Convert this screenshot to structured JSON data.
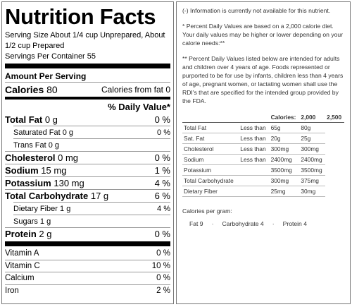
{
  "label": {
    "title": "Nutrition Facts",
    "serving_size": "Serving Size About 1/4 cup Unprepared, About 1/2 cup Prepared",
    "servings": "Servings Per Container 55",
    "amount_per_serving": "Amount Per Serving",
    "calories": {
      "name": "Calories",
      "amount": "80",
      "from_fat": "Calories from fat 0"
    },
    "dv_header": "% Daily Value*",
    "nutrients": [
      {
        "name": "Total Fat",
        "amount": "0 g",
        "dv": "0 %",
        "bold": true
      },
      {
        "name": "Saturated Fat 0 g",
        "dv": "0 %",
        "indent": true
      },
      {
        "name": "Trans Fat 0 g",
        "indent": true
      },
      {
        "name": "Cholesterol",
        "amount": "0 mg",
        "dv": "0 %",
        "bold": true
      },
      {
        "name": "Sodium",
        "amount": "15 mg",
        "dv": "1 %",
        "bold": true
      },
      {
        "name": "Potassium",
        "amount": "130 mg",
        "dv": "4 %",
        "bold": true
      },
      {
        "name": "Total Carbohydrate",
        "amount": "17 g",
        "dv": "6 %",
        "bold": true
      },
      {
        "name": "Dietary Fiber 1 g",
        "dv": "4 %",
        "indent": true
      },
      {
        "name": "Sugars 1 g",
        "indent": true
      },
      {
        "name": "Protein",
        "amount": "2 g",
        "dv": "0 %",
        "bold": true
      }
    ],
    "vitamins": [
      {
        "name": "Vitamin A",
        "dv": "0 %"
      },
      {
        "name": "Vitamin C",
        "dv": "10 %"
      },
      {
        "name": "Calcium",
        "dv": "0 %"
      },
      {
        "name": "Iron",
        "dv": "2 %"
      }
    ]
  },
  "notes": {
    "unavailable": "(-) Information is currently not available for this nutrient.",
    "percent_dv": "* Percent Daily Values are based on a 2,000 calorie diet. Your daily values may be higher or lower depending on your calorie needs:**",
    "intended": "** Percent Daily Values listed below are intended for adults and children over 4 years of age. Foods represented or purported to be for use by infants, children less than 4 years of age, pregnant women, or lactating women shall use the RDI's that are specified for the intended group provided by the FDA."
  },
  "dv_table": {
    "header": [
      "Calories:",
      "2,000",
      "2,500"
    ],
    "rows": [
      {
        "name": "Total Fat",
        "qualifier": "Less than",
        "v2000": "65g",
        "v2500": "80g"
      },
      {
        "name": "Sat. Fat",
        "qualifier": "Less than",
        "v2000": "20g",
        "v2500": "25g"
      },
      {
        "name": "Cholesterol",
        "qualifier": "Less than",
        "v2000": "300mg",
        "v2500": "300mg"
      },
      {
        "name": "Sodium",
        "qualifier": "Less than",
        "v2000": "2400mg",
        "v2500": "2400mg"
      },
      {
        "name": "Potassium",
        "v2000": "3500mg",
        "v2500": "3500mg"
      },
      {
        "name": "Total Carbohydrate",
        "v2000": "300mg",
        "v2500": "375mg"
      },
      {
        "name": "Dietary Fiber",
        "v2000": "25mg",
        "v2500": "30mg"
      }
    ]
  },
  "calories_per_gram": {
    "title": "Calories per gram:",
    "items": [
      "Fat 9",
      "Carbohydrate 4",
      "Protein 4"
    ]
  }
}
